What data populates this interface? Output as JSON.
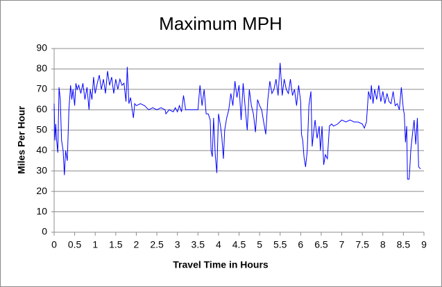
{
  "chart_data": {
    "type": "line",
    "title": "Maximum MPH",
    "x_label": "Travel Time in Hours",
    "y_label": "Miles Per Hour",
    "series": [
      {
        "name": "Maximum MPH",
        "color": "#0000ff",
        "x": [
          0,
          0.02,
          0.04,
          0.06,
          0.09,
          0.12,
          0.15,
          0.18,
          0.22,
          0.25,
          0.28,
          0.32,
          0.36,
          0.4,
          0.43,
          0.46,
          0.5,
          0.53,
          0.56,
          0.6,
          0.65,
          0.7,
          0.75,
          0.8,
          0.85,
          0.88,
          0.92,
          0.96,
          1.0,
          1.05,
          1.1,
          1.15,
          1.2,
          1.25,
          1.3,
          1.35,
          1.4,
          1.45,
          1.5,
          1.55,
          1.6,
          1.65,
          1.7,
          1.75,
          1.78,
          1.82,
          1.86,
          1.9,
          1.93,
          1.96,
          2.0,
          2.1,
          2.2,
          2.3,
          2.4,
          2.5,
          2.6,
          2.7,
          2.72,
          2.8,
          2.9,
          2.95,
          3.0,
          3.05,
          3.1,
          3.15,
          3.2,
          3.3,
          3.4,
          3.5,
          3.55,
          3.6,
          3.65,
          3.7,
          3.75,
          3.8,
          3.82,
          3.85,
          3.88,
          3.92,
          3.96,
          4.0,
          4.05,
          4.08,
          4.12,
          4.15,
          4.2,
          4.25,
          4.3,
          4.35,
          4.4,
          4.45,
          4.5,
          4.55,
          4.6,
          4.65,
          4.7,
          4.75,
          4.8,
          4.85,
          4.9,
          4.95,
          5.0,
          5.05,
          5.1,
          5.15,
          5.2,
          5.25,
          5.3,
          5.35,
          5.4,
          5.45,
          5.5,
          5.55,
          5.6,
          5.65,
          5.7,
          5.75,
          5.8,
          5.85,
          5.9,
          5.95,
          6.0,
          6.02,
          6.05,
          6.08,
          6.12,
          6.16,
          6.2,
          6.25,
          6.28,
          6.32,
          6.35,
          6.4,
          6.45,
          6.48,
          6.52,
          6.56,
          6.6,
          6.65,
          6.7,
          6.75,
          6.8,
          6.9,
          7.0,
          7.1,
          7.2,
          7.3,
          7.4,
          7.5,
          7.55,
          7.6,
          7.65,
          7.7,
          7.72,
          7.76,
          7.8,
          7.85,
          7.9,
          7.95,
          8.0,
          8.05,
          8.1,
          8.15,
          8.2,
          8.25,
          8.3,
          8.35,
          8.4,
          8.45,
          8.5,
          8.52,
          8.55,
          8.58,
          8.6,
          8.64,
          8.68,
          8.72,
          8.76,
          8.8,
          8.84,
          8.87,
          8.92
        ],
        "values": [
          63,
          45,
          53,
          45,
          39,
          71,
          65,
          45,
          40,
          28,
          40,
          35,
          60,
          72,
          65,
          70,
          62,
          73,
          70,
          72,
          68,
          73,
          65,
          71,
          60,
          70,
          65,
          76,
          68,
          73,
          77,
          70,
          75,
          68,
          79,
          72,
          76,
          68,
          75,
          70,
          75,
          72,
          73,
          64,
          81,
          63,
          66,
          60,
          56,
          63,
          62,
          63,
          62,
          60,
          61,
          60,
          61,
          60,
          58,
          60,
          59,
          61,
          59,
          62,
          59,
          67,
          60,
          60,
          60,
          60,
          72,
          62,
          70,
          58,
          58,
          55,
          40,
          37,
          56,
          38,
          29,
          58,
          52,
          47,
          36,
          50,
          56,
          60,
          68,
          62,
          74,
          66,
          72,
          55,
          73,
          61,
          50,
          70,
          62,
          58,
          49,
          65,
          62,
          60,
          54,
          48,
          65,
          74,
          68,
          70,
          75,
          67,
          83,
          67,
          75,
          70,
          68,
          75,
          67,
          70,
          62,
          72,
          64,
          48,
          45,
          37,
          32,
          40,
          62,
          69,
          42,
          50,
          55,
          46,
          52,
          40,
          52,
          33,
          38,
          36,
          52,
          53,
          52,
          53,
          55,
          54,
          55,
          54,
          54,
          53,
          51,
          54,
          69,
          65,
          72,
          63,
          70,
          65,
          72,
          64,
          69,
          63,
          68,
          64,
          63,
          69,
          62,
          63,
          60,
          71,
          60,
          58,
          44,
          52,
          26,
          26,
          40,
          48,
          55,
          43,
          56,
          32,
          31
        ]
      }
    ],
    "xlim": [
      0,
      9
    ],
    "xticks": [
      0,
      0.5,
      1,
      1.5,
      2,
      2.5,
      3,
      3.5,
      4,
      4.5,
      5,
      5.5,
      6,
      6.5,
      7,
      7.5,
      8,
      8.5,
      9
    ],
    "ylim": [
      0,
      90
    ],
    "yticks": [
      0,
      10,
      20,
      30,
      40,
      50,
      60,
      70,
      80,
      90
    ],
    "grid": true
  }
}
